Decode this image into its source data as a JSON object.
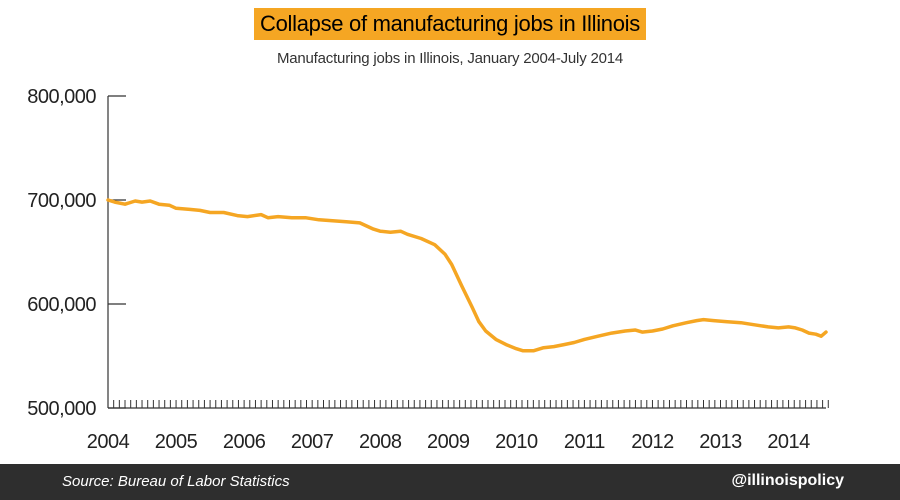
{
  "chart_data": {
    "type": "line",
    "title": "Collapse of manufacturing jobs in Illinois",
    "subtitle": "Manufacturing jobs in Illinois, January 2004-July 2014",
    "xlabel": "",
    "ylabel": "",
    "xlim": [
      2004.0,
      2014.55
    ],
    "ylim": [
      500000,
      800000
    ],
    "x_ticks": [
      "2004",
      "2005",
      "2006",
      "2007",
      "2008",
      "2009",
      "2010",
      "2011",
      "2012",
      "2013",
      "2014"
    ],
    "y_ticks": [
      "500,000",
      "600,000",
      "700,000",
      "800,000"
    ],
    "line_color": "#f5a623",
    "series": [
      {
        "name": "Manufacturing jobs",
        "points": [
          [
            2004.0,
            700000
          ],
          [
            2004.1,
            698000
          ],
          [
            2004.25,
            696000
          ],
          [
            2004.4,
            699000
          ],
          [
            2004.5,
            698000
          ],
          [
            2004.62,
            699000
          ],
          [
            2004.75,
            696000
          ],
          [
            2004.9,
            695000
          ],
          [
            2005.0,
            692000
          ],
          [
            2005.2,
            691000
          ],
          [
            2005.35,
            690000
          ],
          [
            2005.5,
            688000
          ],
          [
            2005.7,
            688000
          ],
          [
            2005.9,
            685000
          ],
          [
            2006.05,
            684000
          ],
          [
            2006.25,
            686000
          ],
          [
            2006.35,
            683000
          ],
          [
            2006.5,
            684000
          ],
          [
            2006.7,
            683000
          ],
          [
            2006.9,
            683000
          ],
          [
            2007.1,
            681000
          ],
          [
            2007.3,
            680000
          ],
          [
            2007.5,
            679000
          ],
          [
            2007.7,
            678000
          ],
          [
            2007.9,
            672000
          ],
          [
            2008.0,
            670000
          ],
          [
            2008.15,
            669000
          ],
          [
            2008.3,
            670000
          ],
          [
            2008.4,
            667000
          ],
          [
            2008.6,
            663000
          ],
          [
            2008.8,
            657000
          ],
          [
            2008.95,
            648000
          ],
          [
            2009.05,
            638000
          ],
          [
            2009.2,
            617000
          ],
          [
            2009.35,
            597000
          ],
          [
            2009.45,
            583000
          ],
          [
            2009.55,
            574000
          ],
          [
            2009.7,
            566000
          ],
          [
            2009.85,
            561000
          ],
          [
            2010.0,
            557000
          ],
          [
            2010.1,
            555000
          ],
          [
            2010.25,
            555000
          ],
          [
            2010.4,
            558000
          ],
          [
            2010.55,
            559000
          ],
          [
            2010.7,
            561000
          ],
          [
            2010.85,
            563000
          ],
          [
            2011.0,
            566000
          ],
          [
            2011.2,
            569000
          ],
          [
            2011.4,
            572000
          ],
          [
            2011.6,
            574000
          ],
          [
            2011.75,
            575000
          ],
          [
            2011.85,
            573000
          ],
          [
            2012.0,
            574000
          ],
          [
            2012.15,
            576000
          ],
          [
            2012.3,
            579000
          ],
          [
            2012.5,
            582000
          ],
          [
            2012.65,
            584000
          ],
          [
            2012.75,
            585000
          ],
          [
            2012.9,
            584000
          ],
          [
            2013.1,
            583000
          ],
          [
            2013.3,
            582000
          ],
          [
            2013.5,
            580000
          ],
          [
            2013.7,
            578000
          ],
          [
            2013.85,
            577000
          ],
          [
            2014.0,
            578000
          ],
          [
            2014.1,
            577000
          ],
          [
            2014.2,
            575000
          ],
          [
            2014.3,
            572000
          ],
          [
            2014.4,
            571000
          ],
          [
            2014.48,
            569000
          ],
          [
            2014.55,
            573000
          ]
        ]
      }
    ]
  },
  "footer": {
    "source": "Source: Bureau of Labor Statistics",
    "handle": "@illinoispolicy"
  }
}
